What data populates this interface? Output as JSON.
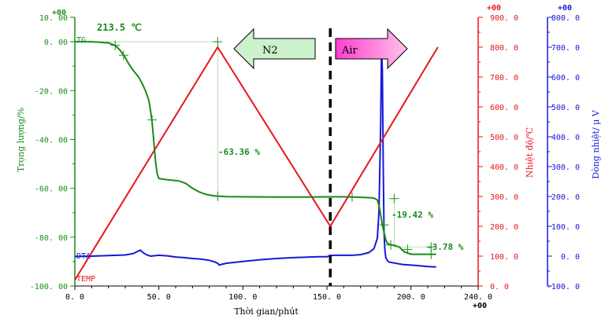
{
  "chart_data": {
    "type": "line",
    "x_axis": {
      "label": "Thời gian/phút",
      "range": [
        0,
        240
      ],
      "ticks": [
        0,
        50,
        100,
        150,
        200,
        240
      ],
      "tick_labels": [
        "0. 0",
        "50. 0",
        "100. 0",
        "150. 0",
        "200. 0",
        "240. 0"
      ],
      "exponent": "+00"
    },
    "y_axes": [
      {
        "id": "tg",
        "label": "Trọng lượng/%",
        "color": "#1a8a1a",
        "range": [
          -100,
          10
        ],
        "ticks": [
          10,
          0,
          -20,
          -40,
          -60,
          -80,
          -100
        ],
        "tick_labels": [
          "10. 00",
          "0. 00",
          "-20. 00",
          "-40. 00",
          "-60. 00",
          "-80. 00",
          "-100. 00"
        ],
        "exponent": "+00"
      },
      {
        "id": "temp",
        "label": "Nhiệt độ/℃",
        "color": "#e8161b",
        "range": [
          0,
          900
        ],
        "ticks": [
          900,
          800,
          700,
          600,
          500,
          400,
          300,
          200,
          100,
          0
        ],
        "tick_labels": [
          "900. 0",
          "800. 0",
          "700. 0",
          "600. 0",
          "500. 0",
          "400. 0",
          "300. 0",
          "200. 0",
          "100. 0",
          "0. 0"
        ],
        "exponent": "+00"
      },
      {
        "id": "dta",
        "label": "Dòng nhiệt/ μ V",
        "color": "#1818d8",
        "range": [
          -100,
          800
        ],
        "ticks": [
          800,
          700,
          600,
          500,
          400,
          300,
          200,
          100,
          0,
          -100
        ],
        "tick_labels": [
          "800. 0",
          "700. 0",
          "600. 0",
          "500. 0",
          "400. 0",
          "300. 0",
          "200. 0",
          "100. 0",
          "0. 0",
          "-100. 0"
        ],
        "exponent": "+00"
      }
    ],
    "series": [
      {
        "name": "TG",
        "axis": "tg",
        "color": "#1a8a1a",
        "x": [
          0,
          10,
          20,
          24,
          27,
          30,
          32,
          35,
          38,
          40,
          42,
          44,
          45,
          46,
          47,
          48,
          49,
          50,
          55,
          62,
          66,
          70,
          74,
          78,
          82,
          85,
          90,
          100,
          120,
          140,
          152,
          160,
          165,
          170,
          175,
          178,
          180,
          181,
          182,
          183,
          184,
          185,
          186,
          188,
          190,
          193,
          196,
          200,
          205,
          210,
          215
        ],
        "y": [
          0,
          0,
          -0.5,
          -1.5,
          -3.5,
          -6.5,
          -9,
          -12,
          -14.5,
          -17,
          -20,
          -24,
          -28,
          -33,
          -41,
          -49,
          -54,
          -56,
          -56.5,
          -57,
          -58,
          -60,
          -61.5,
          -62.5,
          -63,
          -63.2,
          -63.4,
          -63.5,
          -63.6,
          -63.6,
          -63.5,
          -63.5,
          -63.6,
          -63.7,
          -63.8,
          -64,
          -64.8,
          -67,
          -71,
          -75,
          -78,
          -81,
          -82.5,
          -83.2,
          -83.4,
          -84,
          -86,
          -87,
          -87,
          -87,
          -87
        ]
      },
      {
        "name": "TEMP",
        "axis": "temp",
        "color": "#e8161b",
        "x": [
          0,
          85,
          152,
          216
        ],
        "y": [
          20,
          800,
          200,
          800
        ]
      },
      {
        "name": "DTA",
        "axis": "dta",
        "color": "#1818d8",
        "x": [
          0,
          10,
          20,
          30,
          35,
          37,
          39,
          41,
          43,
          45,
          50,
          55,
          60,
          65,
          70,
          75,
          80,
          83,
          85,
          86,
          87,
          90,
          100,
          110,
          120,
          130,
          140,
          145,
          150,
          152,
          155,
          160,
          165,
          170,
          175,
          178,
          180,
          181,
          182,
          182.5,
          183,
          183.5,
          184,
          184.5,
          185,
          186,
          187,
          190,
          195,
          200,
          205,
          210,
          215
        ],
        "y": [
          -1,
          0,
          2,
          4,
          9,
          15,
          20,
          10,
          4,
          0,
          3,
          1,
          -3,
          -5,
          -8,
          -10,
          -14,
          -19,
          -24,
          -30,
          -28,
          -24,
          -18,
          -12,
          -8,
          -5,
          -3,
          -2,
          -2,
          2,
          3,
          3,
          3,
          5,
          12,
          25,
          60,
          150,
          450,
          700,
          620,
          300,
          80,
          20,
          -5,
          -15,
          -20,
          -23,
          -28,
          -30,
          -32,
          -35,
          -36
        ]
      }
    ],
    "annotations": {
      "onset_temp": "213.5 ℃",
      "step1_loss": "-63.36 %",
      "step2_loss": "-19.42 %",
      "step3_loss": "-3.78 %",
      "gas_n2": "N2",
      "gas_air": "Air",
      "switch_time": 152
    },
    "series_labels": [
      "TG",
      "DTA",
      "TEMP"
    ],
    "colors": {
      "tg": "#1a8a1a",
      "temp": "#e8161b",
      "dta": "#1818d8",
      "n2_arrow_fill": "#ccf2cc",
      "air_arrow_fill_left": "#ff3dd0",
      "air_arrow_fill_right": "#ffc3e8"
    }
  }
}
